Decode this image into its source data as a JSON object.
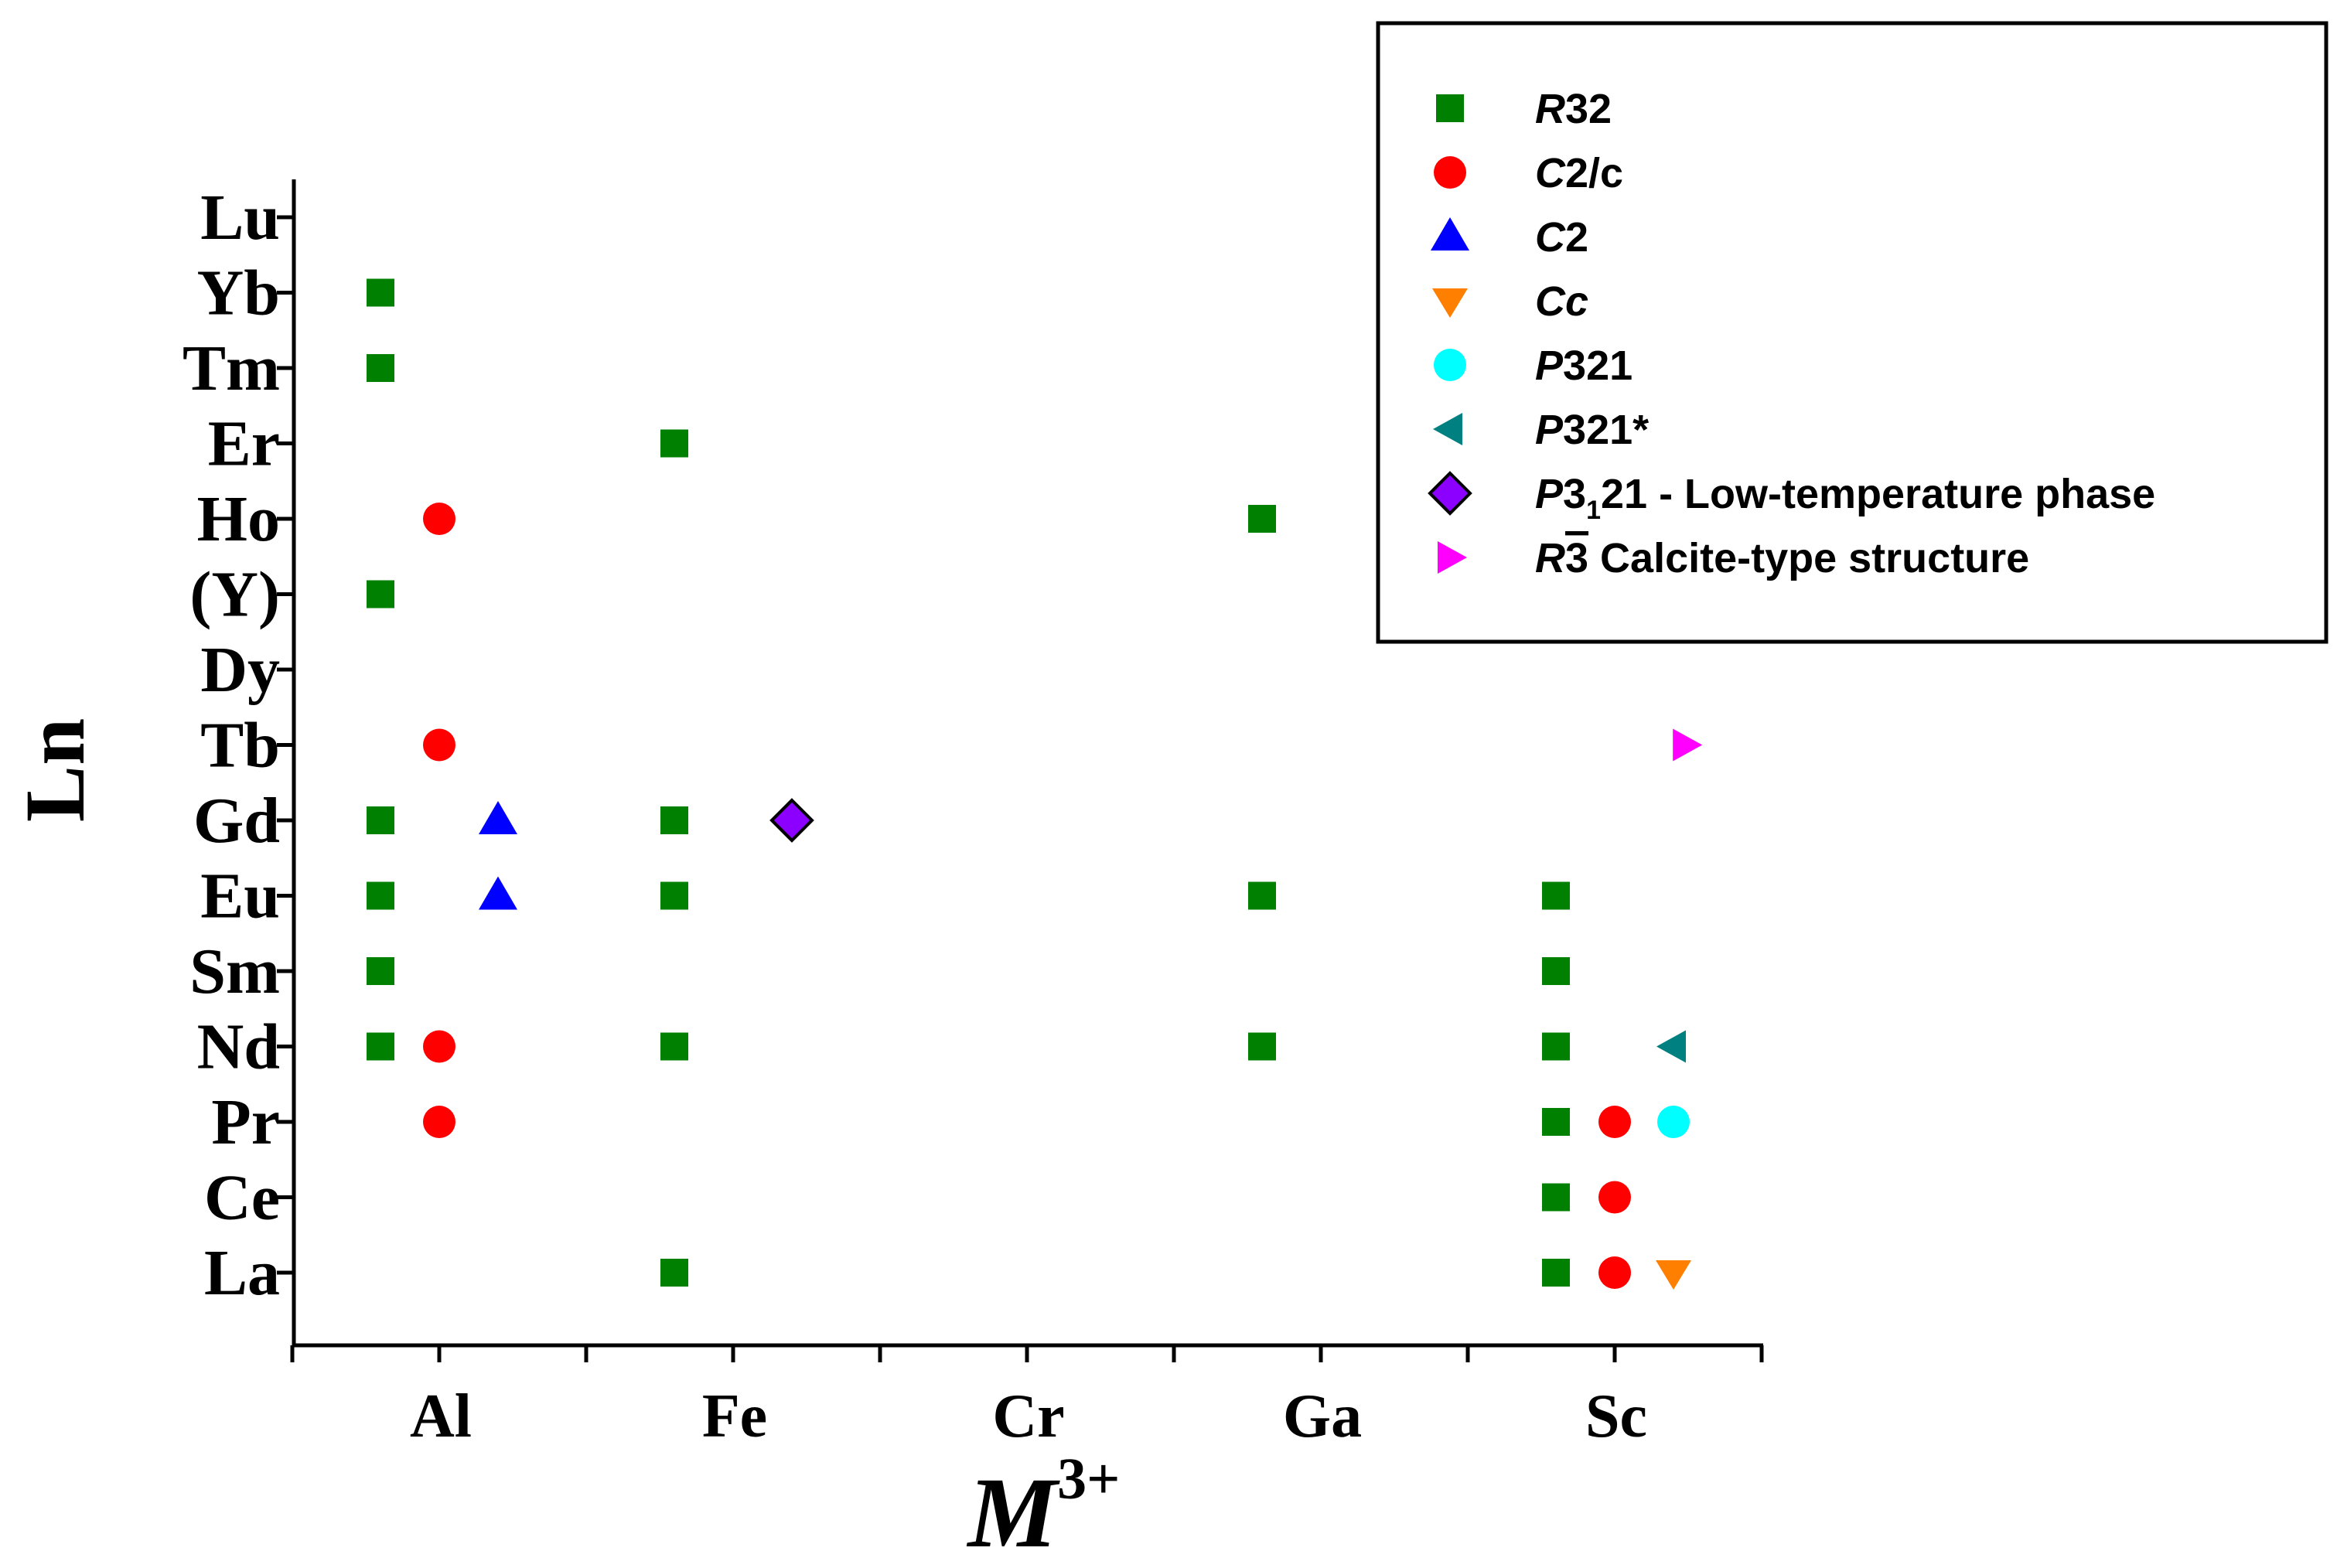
{
  "chart_data": {
    "type": "scatter",
    "xlabel": "M",
    "xlabel_sup": "3+",
    "ylabel": "Ln",
    "x_categories": [
      "Al",
      "Fe",
      "Cr",
      "Ga",
      "Sc"
    ],
    "y_categories": [
      "La",
      "Ce",
      "Pr",
      "Nd",
      "Sm",
      "Eu",
      "Gd",
      "Tb",
      "Dy",
      "(Y)",
      "Ho",
      "Er",
      "Tm",
      "Yb",
      "Lu"
    ],
    "series": [
      {
        "name": "R32",
        "italic": "R",
        "rest": "32",
        "marker": "square",
        "color": "#008000",
        "offset": -0.2,
        "points": [
          [
            "Al",
            "Nd"
          ],
          [
            "Al",
            "Sm"
          ],
          [
            "Al",
            "Eu"
          ],
          [
            "Al",
            "Gd"
          ],
          [
            "Al",
            "(Y)"
          ],
          [
            "Al",
            "Tm"
          ],
          [
            "Al",
            "Yb"
          ],
          [
            "Fe",
            "La"
          ],
          [
            "Fe",
            "Nd"
          ],
          [
            "Fe",
            "Eu"
          ],
          [
            "Fe",
            "Gd"
          ],
          [
            "Fe",
            "Er"
          ],
          [
            "Ga",
            "Nd"
          ],
          [
            "Ga",
            "Eu"
          ],
          [
            "Ga",
            "Ho"
          ],
          [
            "Sc",
            "La"
          ],
          [
            "Sc",
            "Ce"
          ],
          [
            "Sc",
            "Pr"
          ],
          [
            "Sc",
            "Nd"
          ],
          [
            "Sc",
            "Sm"
          ],
          [
            "Sc",
            "Eu"
          ]
        ]
      },
      {
        "name": "C2/c",
        "italic": "C",
        "rest": "2/c",
        "marker": "circle",
        "color": "#ff0000",
        "offset": 0.0,
        "points": [
          [
            "Al",
            "Pr"
          ],
          [
            "Al",
            "Nd"
          ],
          [
            "Al",
            "Tb"
          ],
          [
            "Al",
            "Ho"
          ],
          [
            "Sc",
            "La"
          ],
          [
            "Sc",
            "Ce"
          ],
          [
            "Sc",
            "Pr"
          ]
        ]
      },
      {
        "name": "C2",
        "italic": "C",
        "rest": "2",
        "marker": "triangle-up",
        "color": "#0000ff",
        "offset": 0.2,
        "points": [
          [
            "Al",
            "Eu"
          ],
          [
            "Al",
            "Gd"
          ]
        ]
      },
      {
        "name": "Cc",
        "italic": "Cc",
        "rest": "",
        "marker": "triangle-down",
        "color": "#ff8000",
        "offset": 0.2,
        "points": [
          [
            "Sc",
            "La"
          ]
        ]
      },
      {
        "name": "P321",
        "italic": "P",
        "rest": "321",
        "marker": "circle",
        "color": "#00ffff",
        "offset": 0.2,
        "points": [
          [
            "Sc",
            "Pr"
          ]
        ]
      },
      {
        "name": "P321*",
        "italic": "P",
        "rest": "321*",
        "marker": "triangle-left",
        "color": "#008080",
        "offset": 0.2,
        "points": [
          [
            "Sc",
            "Nd"
          ]
        ]
      },
      {
        "name": "P3121 - Low-temperature phase",
        "italic": "P",
        "rest": "3",
        "sub": "1",
        "tail": "21 - Low-temperature phase",
        "marker": "diamond",
        "color": "#8b00ff",
        "offset": 0.2,
        "points": [
          [
            "Fe",
            "Gd"
          ]
        ]
      },
      {
        "name": "R-3 Calcite-type structure",
        "italic": "R",
        "rest": "3",
        "tail": "   Calcite-type structure",
        "marker": "triangle-right",
        "color": "#ff00ff",
        "offset": 0.24,
        "points": [
          [
            "Sc",
            "Tb"
          ]
        ]
      }
    ],
    "legend": "top-right",
    "grid": false
  }
}
